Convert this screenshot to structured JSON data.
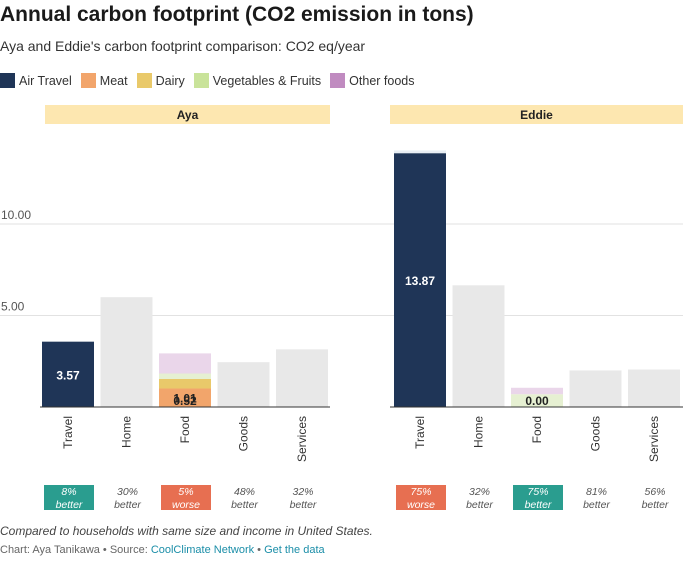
{
  "title": "Annual carbon footprint (CO2 emission in tons)",
  "subtitle": "Aya and Eddie's carbon footprint comparison: CO2 eq/year",
  "legend": [
    {
      "label": "Air Travel",
      "color": "#1f3557"
    },
    {
      "label": "Meat",
      "color": "#f2a56b"
    },
    {
      "label": "Dairy",
      "color": "#e9c96a"
    },
    {
      "label": "Vegetables & Fruits",
      "color": "#c9e39a"
    },
    {
      "label": "Other foods",
      "color": "#c08bc0"
    }
  ],
  "footnote": "Compared to households with same size and income in United States.",
  "credits": {
    "prefix": "Chart: Aya Tanikawa • Source: ",
    "source": "CoolClimate Network",
    "separator": " • ",
    "get_data": "Get the data"
  },
  "chart_data": {
    "type": "bar",
    "categories": [
      "Travel",
      "Home",
      "Food",
      "Goods",
      "Services"
    ],
    "y_ticks": [
      5,
      10
    ],
    "y_tick_labels": [
      "5.00",
      "10.00"
    ],
    "ylim": [
      0,
      14.2
    ],
    "grid": true,
    "panels": [
      {
        "name": "Aya",
        "bars": [
          {
            "category": "Travel",
            "segments": [
              {
                "series": "Air Travel",
                "value": 3.57,
                "color": "#1f3557",
                "label": "3.57",
                "label_color": "#ffffff"
              }
            ]
          },
          {
            "category": "Home",
            "segments": [
              {
                "series": "Home",
                "value": 6.0,
                "color": "#e8e8e8"
              }
            ]
          },
          {
            "category": "Food",
            "segments": [
              {
                "series": "Meat",
                "value": 1.01,
                "color": "#f2a56b",
                "label": "1.01",
                "label_color": "#222222"
              },
              {
                "series": "Dairy",
                "value": 0.52,
                "color": "#e9c96a",
                "label": "0.52",
                "label_color": "#222222"
              },
              {
                "series": "Vegetables & Fruits",
                "value": 0.3,
                "color": "#e6f0d2"
              },
              {
                "series": "Other foods",
                "value": 1.1,
                "color": "#ead6ea"
              }
            ]
          },
          {
            "category": "Goods",
            "segments": [
              {
                "series": "Goods",
                "value": 2.45,
                "color": "#e8e8e8"
              }
            ]
          },
          {
            "category": "Services",
            "segments": [
              {
                "series": "Services",
                "value": 3.15,
                "color": "#e8e8e8"
              }
            ]
          }
        ],
        "comparisons": [
          {
            "category": "Travel",
            "pct": "8%",
            "word": "better",
            "highlight": "#2a9d8f"
          },
          {
            "category": "Home",
            "pct": "30%",
            "word": "better",
            "highlight": ""
          },
          {
            "category": "Food",
            "pct": "5%",
            "word": "worse",
            "highlight": "#e76f51"
          },
          {
            "category": "Goods",
            "pct": "48%",
            "word": "better",
            "highlight": ""
          },
          {
            "category": "Services",
            "pct": "32%",
            "word": "better",
            "highlight": ""
          }
        ]
      },
      {
        "name": "Eddie",
        "bars": [
          {
            "category": "Travel",
            "segments": [
              {
                "series": "Air Travel",
                "value": 13.87,
                "color": "#1f3557",
                "label": "13.87",
                "label_color": "#ffffff"
              },
              {
                "series": "Other travel",
                "value": 0.15,
                "color": "#e8eef4"
              }
            ]
          },
          {
            "category": "Home",
            "segments": [
              {
                "series": "Home",
                "value": 6.65,
                "color": "#e8e8e8"
              }
            ]
          },
          {
            "category": "Food",
            "segments": [
              {
                "series": "Meat",
                "value": 0.0,
                "color": "#f2a56b",
                "label": "0.00",
                "label_color": "#222222"
              },
              {
                "series": "Vegetables & Fruits",
                "value": 0.7,
                "color": "#e6f0d2"
              },
              {
                "series": "Other foods",
                "value": 0.35,
                "color": "#ead6ea"
              }
            ]
          },
          {
            "category": "Goods",
            "segments": [
              {
                "series": "Goods",
                "value": 2.0,
                "color": "#e8e8e8"
              }
            ]
          },
          {
            "category": "Services",
            "segments": [
              {
                "series": "Services",
                "value": 2.05,
                "color": "#e8e8e8"
              }
            ]
          }
        ],
        "comparisons": [
          {
            "category": "Travel",
            "pct": "75%",
            "word": "worse",
            "highlight": "#e76f51"
          },
          {
            "category": "Home",
            "pct": "32%",
            "word": "better",
            "highlight": ""
          },
          {
            "category": "Food",
            "pct": "75%",
            "word": "better",
            "highlight": "#2a9d8f"
          },
          {
            "category": "Goods",
            "pct": "81%",
            "word": "better",
            "highlight": ""
          },
          {
            "category": "Services",
            "pct": "56%",
            "word": "better",
            "highlight": ""
          }
        ]
      }
    ]
  }
}
